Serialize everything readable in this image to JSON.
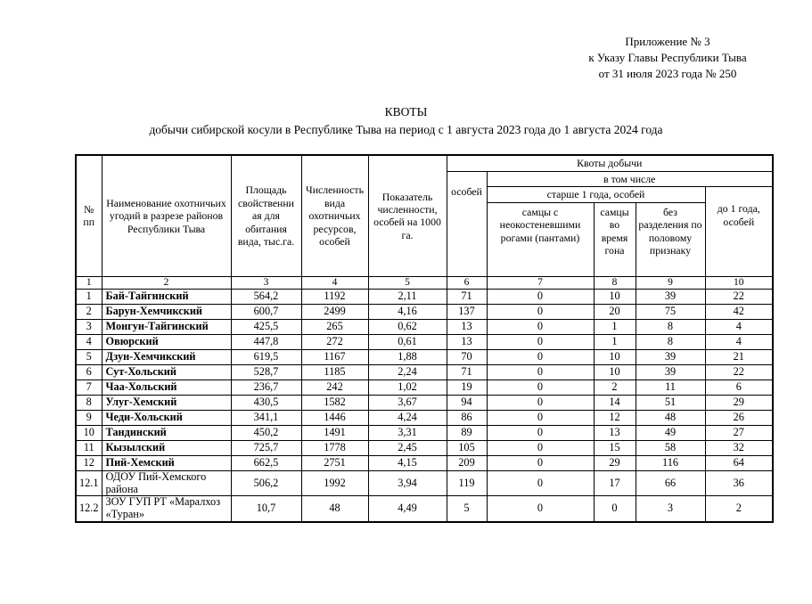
{
  "colors": {
    "ink": "#000000",
    "paper": "#ffffff"
  },
  "annex": {
    "line1": "Приложение № 3",
    "line2": "к Указу Главы Республики Тыва",
    "line3": "от 31 июля 2023 года № 250"
  },
  "title": {
    "line1": "КВОТЫ",
    "line2": "добычи сибирской косули в Республике Тыва на период с 1 августа 2023 года до 1 августа 2024 года"
  },
  "table": {
    "header": {
      "num": "№ пп",
      "name": "Наименование охотничьих угодий в разрезе районов Республики Тыва",
      "area": "Площадь свойственни ая для обитания вида, тыс.га.",
      "population": "Численность вида охотничьих ресурсов, особей",
      "indicator": "Показатель численности, особей на 1000 га.",
      "quota_group": "Квоты добычи",
      "osobey": "особей",
      "including": "в том числе",
      "older_group": "старше 1 года, особей",
      "males_antlers": "самцы с неокостеневшими рогами (пантами)",
      "males_rut": "самцы во время гона",
      "no_division": "без разделения по половому признаку",
      "under1": "до 1 года, особей"
    },
    "col_numbers": [
      "1",
      "2",
      "3",
      "4",
      "5",
      "6",
      "7",
      "8",
      "9",
      "10"
    ],
    "rows": [
      {
        "num": "1",
        "name": "Бай-Тайгинский",
        "bold": true,
        "values": [
          "564,2",
          "1192",
          "2,11",
          "71",
          "0",
          "10",
          "39",
          "22"
        ]
      },
      {
        "num": "2",
        "name": "Барун-Хемчикский",
        "bold": true,
        "values": [
          "600,7",
          "2499",
          "4,16",
          "137",
          "0",
          "20",
          "75",
          "42"
        ]
      },
      {
        "num": "3",
        "name": "Монгун-Тайгинский",
        "bold": true,
        "values": [
          "425,5",
          "265",
          "0,62",
          "13",
          "0",
          "1",
          "8",
          "4"
        ]
      },
      {
        "num": "4",
        "name": "Овюрский",
        "bold": true,
        "values": [
          "447,8",
          "272",
          "0,61",
          "13",
          "0",
          "1",
          "8",
          "4"
        ]
      },
      {
        "num": "5",
        "name": "Дзун-Хемчикский",
        "bold": true,
        "values": [
          "619,5",
          "1167",
          "1,88",
          "70",
          "0",
          "10",
          "39",
          "21"
        ]
      },
      {
        "num": "6",
        "name": "Сут-Хольский",
        "bold": true,
        "values": [
          "528,7",
          "1185",
          "2,24",
          "71",
          "0",
          "10",
          "39",
          "22"
        ]
      },
      {
        "num": "7",
        "name": "Чаа-Хольский",
        "bold": true,
        "values": [
          "236,7",
          "242",
          "1,02",
          "19",
          "0",
          "2",
          "11",
          "6"
        ]
      },
      {
        "num": "8",
        "name": "Улуг-Хемский",
        "bold": true,
        "values": [
          "430,5",
          "1582",
          "3,67",
          "94",
          "0",
          "14",
          "51",
          "29"
        ]
      },
      {
        "num": "9",
        "name": "Чеди-Хольский",
        "bold": true,
        "values": [
          "341,1",
          "1446",
          "4,24",
          "86",
          "0",
          "12",
          "48",
          "26"
        ]
      },
      {
        "num": "10",
        "name": "Тандинский",
        "bold": true,
        "values": [
          "450,2",
          "1491",
          "3,31",
          "89",
          "0",
          "13",
          "49",
          "27"
        ]
      },
      {
        "num": "11",
        "name": "Кызылский",
        "bold": true,
        "values": [
          "725,7",
          "1778",
          "2,45",
          "105",
          "0",
          "15",
          "58",
          "32"
        ]
      },
      {
        "num": "12",
        "name": "Пий-Хемский",
        "bold": true,
        "values": [
          "662,5",
          "2751",
          "4,15",
          "209",
          "0",
          "29",
          "116",
          "64"
        ]
      },
      {
        "num": "12.1",
        "name": "ОДОУ Пий-Хемского района",
        "bold": false,
        "values": [
          "506,2",
          "1992",
          "3,94",
          "119",
          "0",
          "17",
          "66",
          "36"
        ]
      },
      {
        "num": "12.2",
        "name": "ЗОУ ГУП РТ «Маралхоз «Туран»",
        "bold": false,
        "values": [
          "10,7",
          "48",
          "4,49",
          "5",
          "0",
          "0",
          "3",
          "2"
        ]
      }
    ]
  }
}
